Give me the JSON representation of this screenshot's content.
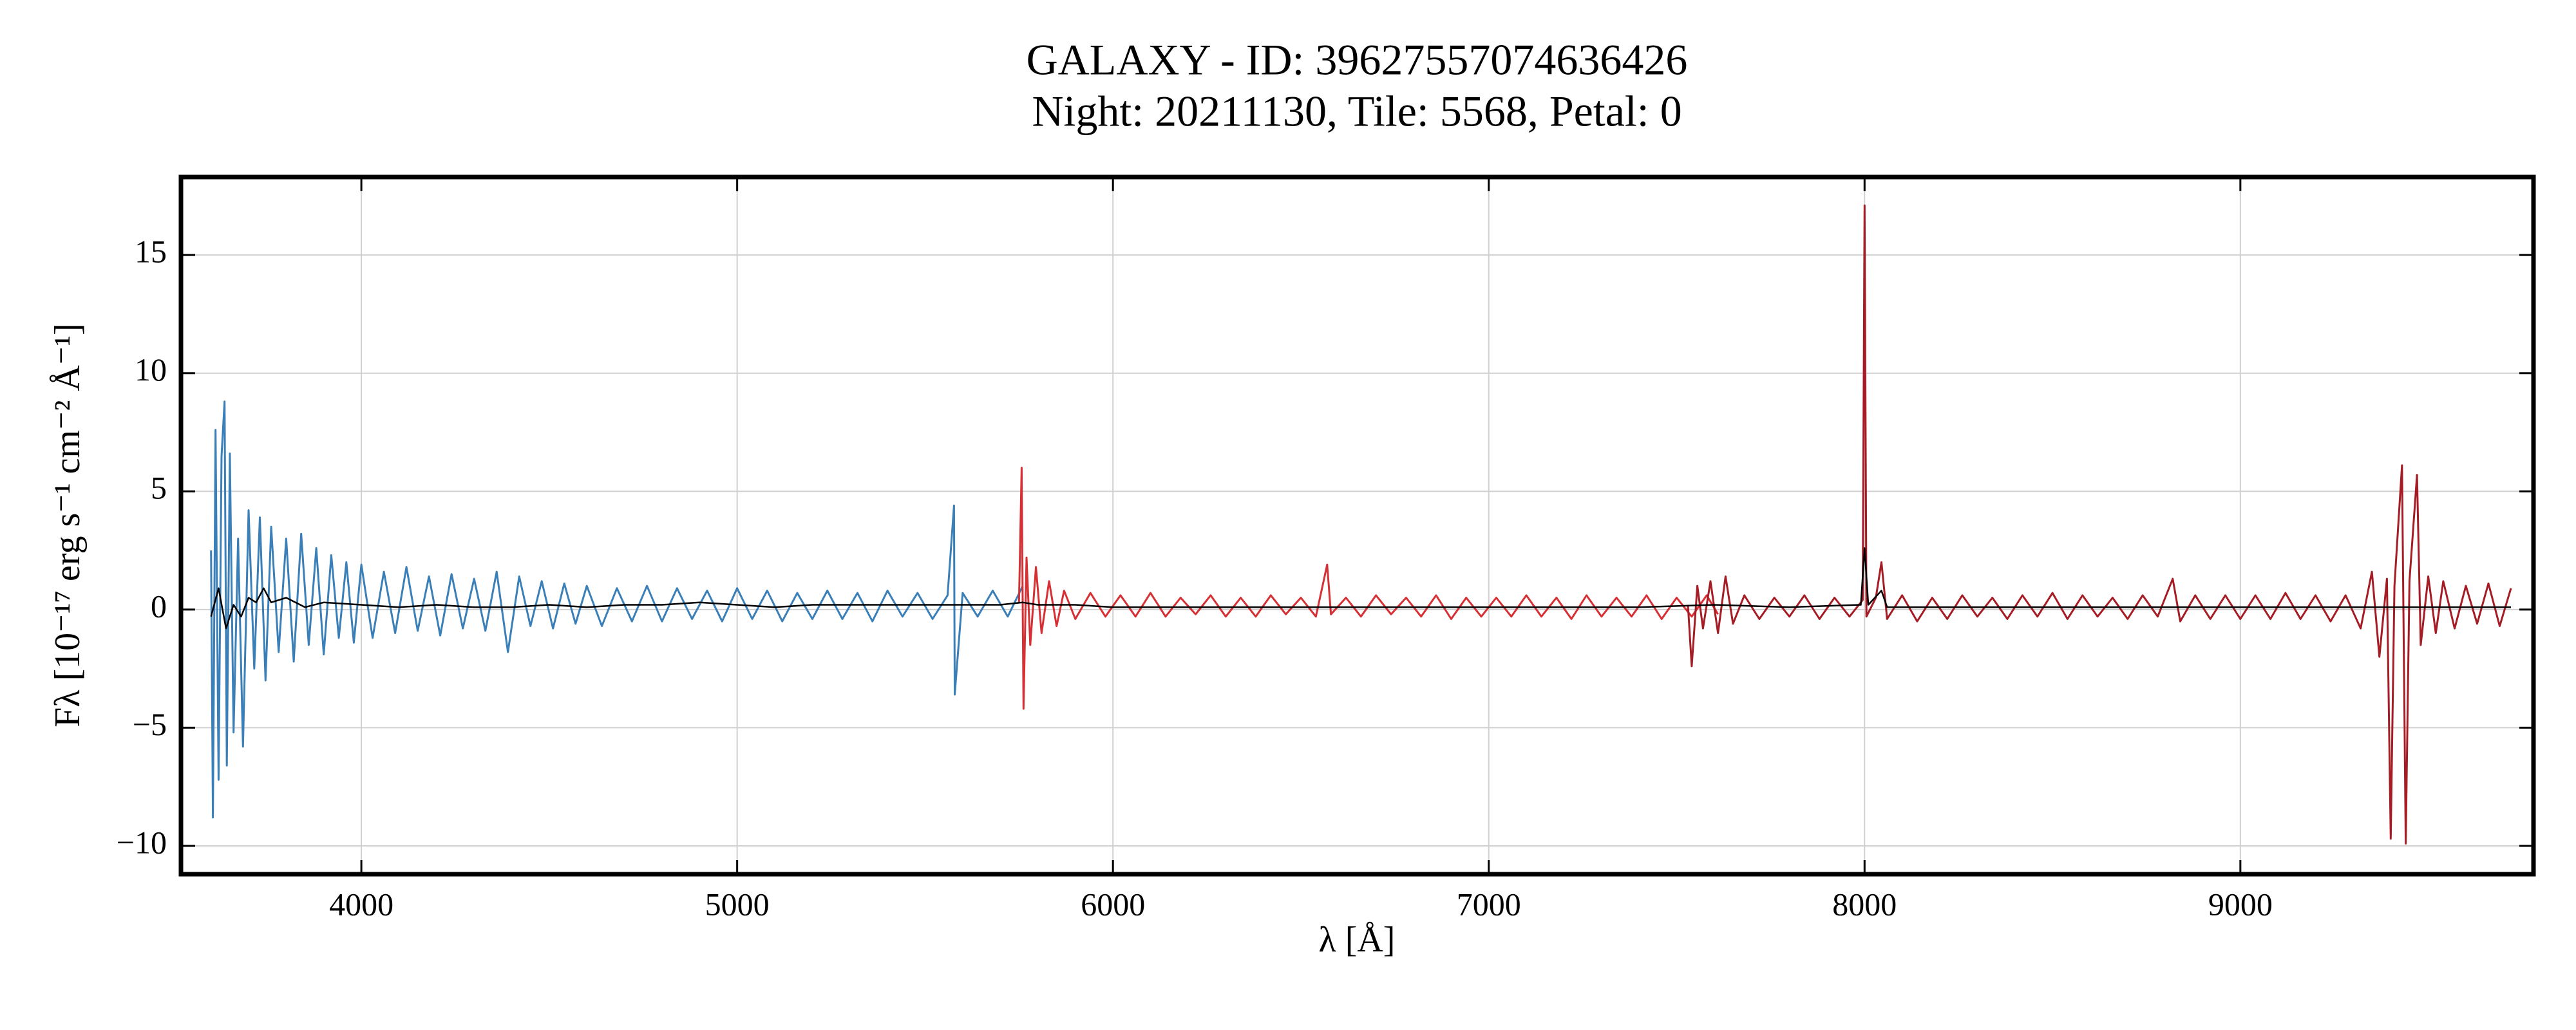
{
  "chart_data": {
    "type": "line",
    "title": "GALAXY - ID: 39627557074636426",
    "subtitle": "Night: 20211130, Tile: 5568, Petal: 0",
    "xlabel": "λ [Å]",
    "ylabel": "Fλ [10⁻¹⁷ erg s⁻¹ cm⁻² Å⁻¹]",
    "xlim": [
      3520,
      9780
    ],
    "ylim": [
      -11.2,
      18.3
    ],
    "xticks": [
      4000,
      5000,
      6000,
      7000,
      8000,
      9000
    ],
    "yticks": [
      {
        "value": -10,
        "label": "−10"
      },
      {
        "value": -5,
        "label": "−5"
      },
      0,
      5,
      10,
      15
    ],
    "grid": true,
    "series": [
      {
        "color": "#3a7fb8",
        "x": [
          3600,
          3605,
          3612,
          3620,
          3628,
          3636,
          3642,
          3650,
          3660,
          3672,
          3685,
          3700,
          3715,
          3730,
          3745,
          3760,
          3780,
          3800,
          3820,
          3840,
          3860,
          3880,
          3900,
          3920,
          3940,
          3960,
          3980,
          4000,
          4030,
          4060,
          4090,
          4120,
          4150,
          4180,
          4210,
          4240,
          4270,
          4300,
          4330,
          4360,
          4390,
          4420,
          4450,
          4480,
          4510,
          4540,
          4570,
          4600,
          4640,
          4680,
          4720,
          4760,
          4800,
          4840,
          4880,
          4920,
          4960,
          5000,
          5040,
          5080,
          5120,
          5160,
          5200,
          5240,
          5280,
          5320,
          5360,
          5400,
          5440,
          5480,
          5520,
          5560,
          5577,
          5579,
          5600,
          5640,
          5680,
          5720,
          5760
        ],
        "values": [
          2.5,
          -8.8,
          7.6,
          -7.2,
          6.5,
          8.8,
          -6.6,
          6.6,
          -5.2,
          3.0,
          -5.8,
          4.2,
          -2.5,
          3.9,
          -3.0,
          3.5,
          -1.8,
          3.0,
          -2.2,
          3.2,
          -1.5,
          2.6,
          -1.9,
          2.3,
          -1.2,
          2.0,
          -1.4,
          1.9,
          -1.2,
          1.6,
          -1.0,
          1.8,
          -0.9,
          1.4,
          -1.1,
          1.5,
          -0.8,
          1.3,
          -0.9,
          1.6,
          -1.8,
          1.4,
          -0.7,
          1.2,
          -0.8,
          1.1,
          -0.6,
          1.0,
          -0.7,
          0.9,
          -0.5,
          1.0,
          -0.5,
          0.9,
          -0.4,
          0.8,
          -0.5,
          0.9,
          -0.4,
          0.8,
          -0.5,
          0.7,
          -0.4,
          0.8,
          -0.4,
          0.7,
          -0.5,
          0.8,
          -0.3,
          0.7,
          -0.4,
          0.6,
          4.4,
          -3.6,
          0.7,
          -0.3,
          0.8,
          -0.3,
          1.0
        ]
      },
      {
        "color": "#d62f34",
        "x": [
          5750,
          5757,
          5762,
          5770,
          5780,
          5795,
          5810,
          5830,
          5850,
          5870,
          5900,
          5940,
          5980,
          6020,
          6060,
          6100,
          6140,
          6180,
          6220,
          6260,
          6300,
          6340,
          6380,
          6420,
          6460,
          6500,
          6540,
          6570,
          6580,
          6620,
          6660,
          6700,
          6740,
          6780,
          6820,
          6860,
          6900,
          6940,
          6980,
          7020,
          7060,
          7100,
          7140,
          7180,
          7220,
          7260,
          7300,
          7340,
          7380,
          7420,
          7460,
          7500,
          7540,
          7580,
          7610
        ],
        "values": [
          0.3,
          6.0,
          -4.2,
          2.2,
          -1.5,
          1.8,
          -1.0,
          1.2,
          -0.7,
          0.8,
          -0.4,
          0.7,
          -0.3,
          0.6,
          -0.3,
          0.7,
          -0.3,
          0.5,
          -0.2,
          0.6,
          -0.3,
          0.5,
          -0.3,
          0.6,
          -0.2,
          0.5,
          -0.3,
          1.9,
          -0.2,
          0.5,
          -0.3,
          0.6,
          -0.2,
          0.5,
          -0.3,
          0.6,
          -0.4,
          0.5,
          -0.3,
          0.5,
          -0.3,
          0.6,
          -0.3,
          0.5,
          -0.4,
          0.6,
          -0.3,
          0.5,
          -0.3,
          0.6,
          -0.4,
          0.5,
          -0.3,
          0.6,
          -0.2
        ]
      },
      {
        "color": "#a51c25",
        "x": [
          7530,
          7540,
          7555,
          7570,
          7590,
          7610,
          7630,
          7650,
          7680,
          7720,
          7760,
          7800,
          7840,
          7880,
          7920,
          7960,
          7995,
          8000,
          8005,
          8030,
          8045,
          8060,
          8100,
          8140,
          8180,
          8220,
          8260,
          8300,
          8340,
          8380,
          8420,
          8460,
          8500,
          8540,
          8580,
          8620,
          8660,
          8700,
          8740,
          8780,
          8820,
          8840,
          8880,
          8920,
          8960,
          9000,
          9040,
          9080,
          9120,
          9160,
          9200,
          9240,
          9280,
          9320,
          9350,
          9370,
          9390,
          9400,
          9410,
          9430,
          9440,
          9450,
          9470,
          9480,
          9500,
          9520,
          9540,
          9570,
          9600,
          9630,
          9660,
          9690,
          9720
        ],
        "values": [
          0.2,
          -2.4,
          1.0,
          -0.8,
          1.2,
          -1.0,
          1.4,
          -0.6,
          0.6,
          -0.4,
          0.5,
          -0.3,
          0.6,
          -0.4,
          0.5,
          -0.3,
          0.4,
          17.1,
          -0.3,
          0.5,
          2.0,
          -0.4,
          0.6,
          -0.5,
          0.5,
          -0.4,
          0.6,
          -0.3,
          0.5,
          -0.4,
          0.6,
          -0.3,
          0.7,
          -0.4,
          0.6,
          -0.3,
          0.5,
          -0.4,
          0.6,
          -0.3,
          1.3,
          -0.5,
          0.6,
          -0.4,
          0.6,
          -0.4,
          0.6,
          -0.4,
          0.7,
          -0.4,
          0.6,
          -0.5,
          0.6,
          -0.8,
          1.6,
          -2.0,
          1.3,
          -9.7,
          1.0,
          6.1,
          -9.9,
          1.2,
          5.7,
          -1.5,
          1.4,
          -1.0,
          1.2,
          -0.8,
          1.0,
          -0.6,
          1.1,
          -0.7,
          0.9
        ]
      },
      {
        "color": "#000000",
        "x": [
          3600,
          3620,
          3640,
          3660,
          3680,
          3700,
          3720,
          3740,
          3760,
          3800,
          3850,
          3900,
          4000,
          4100,
          4200,
          4300,
          4400,
          4500,
          4600,
          4700,
          4800,
          4900,
          5000,
          5100,
          5200,
          5300,
          5400,
          5500,
          5600,
          5700,
          5760,
          5800,
          5900,
          6000,
          6200,
          6400,
          6600,
          6800,
          7000,
          7200,
          7400,
          7600,
          7800,
          7990,
          8000,
          8010,
          8045,
          8060,
          8300,
          8600,
          9000,
          9300,
          9500,
          9720
        ],
        "values": [
          -0.3,
          0.9,
          -0.8,
          0.2,
          -0.3,
          0.5,
          0.3,
          0.9,
          0.3,
          0.5,
          0.1,
          0.3,
          0.2,
          0.1,
          0.2,
          0.1,
          0.1,
          0.2,
          0.1,
          0.2,
          0.2,
          0.3,
          0.2,
          0.1,
          0.2,
          0.2,
          0.2,
          0.2,
          0.2,
          0.2,
          0.3,
          0.2,
          0.2,
          0.1,
          0.1,
          0.1,
          0.1,
          0.1,
          0.1,
          0.1,
          0.1,
          0.2,
          0.1,
          0.2,
          2.6,
          0.2,
          0.8,
          0.1,
          0.1,
          0.1,
          0.1,
          0.1,
          0.1,
          0.1
        ]
      }
    ]
  }
}
